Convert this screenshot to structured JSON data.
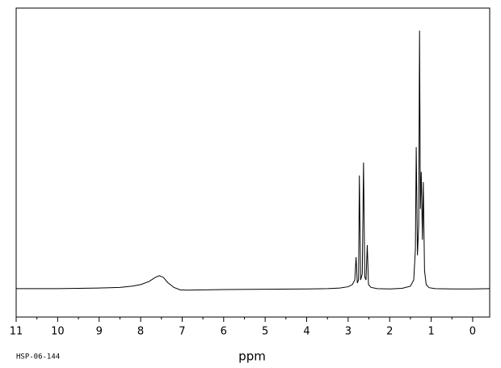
{
  "chart_data": {
    "type": "line",
    "xlabel": "ppm",
    "annotation": "HSP-06-144",
    "xlim": [
      11.0,
      -0.41
    ],
    "ylim": [
      0,
      100
    ],
    "xticks": [
      11,
      10,
      9,
      8,
      7,
      6,
      5,
      4,
      3,
      2,
      1,
      0
    ],
    "series": [
      {
        "color": "#000000",
        "x": [
          11.0,
          10.5,
          10.0,
          9.5,
          9.0,
          8.5,
          8.2,
          8.0,
          7.8,
          7.65,
          7.55,
          7.45,
          7.35,
          7.2,
          7.05,
          6.9,
          6.5,
          6.0,
          5.0,
          4.0,
          3.5,
          3.2,
          3.0,
          2.9,
          2.84,
          2.81,
          2.78,
          2.75,
          2.73,
          2.7,
          2.66,
          2.63,
          2.6,
          2.57,
          2.54,
          2.51,
          2.45,
          2.3,
          2.0,
          1.7,
          1.5,
          1.42,
          1.38,
          1.36,
          1.33,
          1.3,
          1.28,
          1.26,
          1.24,
          1.21,
          1.19,
          1.16,
          1.12,
          1.05,
          0.9,
          0.5,
          0.0,
          -0.4
        ],
        "values": [
          9.2,
          9.2,
          9.2,
          9.3,
          9.4,
          9.6,
          10.0,
          10.5,
          11.5,
          12.8,
          13.4,
          12.8,
          11.2,
          9.6,
          8.8,
          8.7,
          8.8,
          8.9,
          9.0,
          9.1,
          9.2,
          9.4,
          9.8,
          10.5,
          12,
          19.4,
          11,
          12,
          45.8,
          12,
          14,
          50,
          13,
          12,
          23.3,
          10.5,
          9.6,
          9.2,
          9.1,
          9.3,
          10,
          12,
          22,
          55,
          20,
          30,
          92.7,
          35,
          47,
          25,
          43.7,
          15,
          10.5,
          9.5,
          9.2,
          9.1,
          9.1,
          9.2
        ]
      }
    ]
  }
}
